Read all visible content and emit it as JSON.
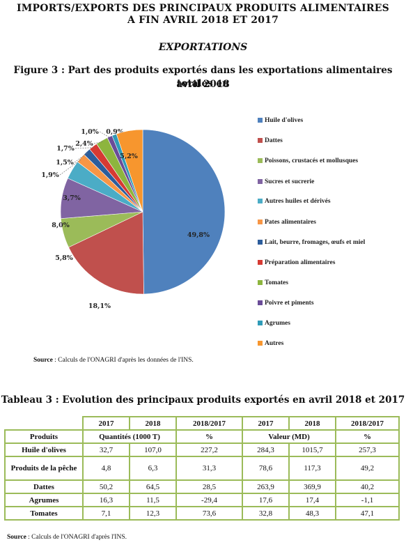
{
  "header": {
    "title_line1": "IMPORTS/EXPORTS DES PRINCIPAUX PRODUITS ALIMENTAIRES",
    "title_line2": "A FIN AVRIL 2018 ET 2017",
    "section": "EXPORTATIONS"
  },
  "figure": {
    "title_line1": "Figure 3 : Part des produits exportés dans les exportations alimentaires totales en",
    "title_line2": "avril 2018",
    "source_label": "Source",
    "source_text": " : Calculs de l'ONAGRI  d'après les données de l'INS."
  },
  "chart_data": {
    "type": "pie",
    "title": "Part des produits exportés dans les exportations alimentaires totales en avril 2018",
    "legend_position": "right",
    "slices": [
      {
        "name": "Huile d'olives",
        "value": 49.8,
        "label": "49,8%",
        "color": "#4f81bd"
      },
      {
        "name": "Dattes",
        "value": 18.1,
        "label": "18,1%",
        "color": "#c0504d"
      },
      {
        "name": "Poissons, crustacés et mollusques",
        "value": 5.8,
        "label": "5,8%",
        "color": "#9bbb59"
      },
      {
        "name": "Sucres et sucrerie",
        "value": 8.0,
        "label": "8,0%",
        "color": "#8064a2"
      },
      {
        "name": "Autres huiles et dérivés",
        "value": 3.7,
        "label": "3,7%",
        "color": "#4bacc6"
      },
      {
        "name": "Pates alimentaires",
        "value": 1.9,
        "label": "1,9%",
        "color": "#f79646"
      },
      {
        "name": "Lait, beurre, fromages, œufs et miel",
        "value": 1.5,
        "label": "1,5%",
        "color": "#2c5d9c"
      },
      {
        "name": "Préparation alimentaires",
        "value": 1.7,
        "label": "1,7%",
        "color": "#d63a33"
      },
      {
        "name": "Tomates",
        "value": 2.4,
        "label": "2,4%",
        "color": "#8db53e"
      },
      {
        "name": "Poivre et piments",
        "value": 1.0,
        "label": "1,0%",
        "color": "#6a4c98"
      },
      {
        "name": "Agrumes",
        "value": 0.9,
        "label": "0,9%",
        "color": "#2f9bb8"
      },
      {
        "name": "Autres",
        "value": 5.2,
        "label": "5,2%",
        "color": "#f7962e"
      }
    ]
  },
  "table": {
    "title": "Tableau 3 : Evolution des principaux produits exportés en avril 2018 et 2017",
    "year_headers": [
      "2017",
      "2018",
      "2018/2017",
      "2017",
      "2018",
      "2018/2017"
    ],
    "col_produits": "Produits",
    "group_quantites": "Quantités (1000 T)",
    "pct1": "%",
    "group_valeur": "Valeur (MD)",
    "pct2": "%",
    "rows": [
      {
        "name": "Huile d'olives",
        "cells": [
          "32,7",
          "107,0",
          "227,2",
          "284,3",
          "1015,7",
          "257,3"
        ]
      },
      {
        "name": "Produits de la pêche",
        "cells": [
          "4,8",
          "6,3",
          "31,3",
          "78,6",
          "117,3",
          "49,2"
        ]
      },
      {
        "name": "Dattes",
        "cells": [
          "50,2",
          "64,5",
          "28,5",
          "263,9",
          "369,9",
          "40,2"
        ]
      },
      {
        "name": "Agrumes",
        "cells": [
          "16,3",
          "11,5",
          "-29,4",
          "17,6",
          "17,4",
          "-1,1"
        ]
      },
      {
        "name": "Tomates",
        "cells": [
          "7,1",
          "12,3",
          "73,6",
          "32,8",
          "48,3",
          "47,1"
        ]
      }
    ],
    "source_label": "Source",
    "source_text": " : Calculs de l'ONAGRI d'après l'INS."
  }
}
